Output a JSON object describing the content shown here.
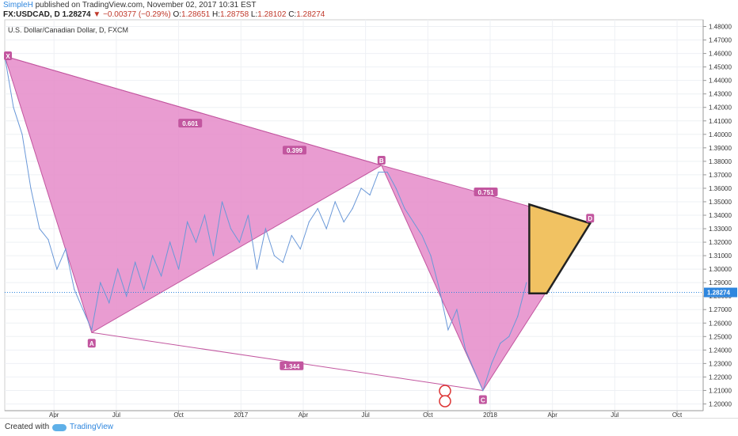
{
  "header": {
    "author": "SimpleH",
    "published": "published on TradingView.com, November 02, 2017 10:31 EST",
    "symbol": "FX:USDCAD, D",
    "last": "1.28274",
    "change": "−0.00377 (−0.29%)",
    "open_label": "O:",
    "open": "1.28651",
    "high_label": "H:",
    "high": "1.28758",
    "low_label": "L:",
    "low": "1.28102",
    "close_label": "C:",
    "close": "1.28274"
  },
  "pane_title": "U.S. Dollar/Canadian Dollar, D, FXCM",
  "footer": {
    "created_with": "Created with",
    "brand": "TradingView"
  },
  "colors": {
    "pattern_fill": "#e58bc9",
    "pattern_line": "#c2569f",
    "price_line": "#6a98d8",
    "target_fill": "#f1c262",
    "badge": "#c2569f",
    "last_price_badge": "#2e86de"
  },
  "chart_data": {
    "type": "line",
    "ylim": [
      1.195,
      1.485
    ],
    "y_ticks": [
      "1.48000",
      "1.47000",
      "1.46000",
      "1.45000",
      "1.44000",
      "1.43000",
      "1.42000",
      "1.41000",
      "1.40000",
      "1.39000",
      "1.38000",
      "1.37000",
      "1.36000",
      "1.35000",
      "1.34000",
      "1.33000",
      "1.32000",
      "1.31000",
      "1.30000",
      "1.29000",
      "1.28000",
      "1.27000",
      "1.26000",
      "1.25000",
      "1.24000",
      "1.23000",
      "1.22000",
      "1.21000",
      "1.20000"
    ],
    "x_ticks": [
      "Apr",
      "Jul",
      "Oct",
      "2017",
      "Apr",
      "Jul",
      "Oct",
      "2018",
      "Apr",
      "Jul",
      "Oct"
    ],
    "last_price_label": "1.28274",
    "last_price": 1.28274,
    "pattern_points": [
      {
        "label": "X",
        "x": 0.0,
        "y": 1.458
      },
      {
        "label": "A",
        "x": 3.0,
        "y": 1.253
      },
      {
        "label": "B",
        "x": 13.0,
        "y": 1.377
      },
      {
        "label": "C",
        "x": 16.5,
        "y": 1.21
      },
      {
        "label": "D",
        "x": 20.2,
        "y": 1.334
      }
    ],
    "ratios": [
      {
        "label": "0.601",
        "x": 6.4,
        "y": 1.408
      },
      {
        "label": "0.399",
        "x": 10.0,
        "y": 1.388
      },
      {
        "label": "1.344",
        "x": 9.9,
        "y": 1.228
      },
      {
        "label": "0.751",
        "x": 16.6,
        "y": 1.357
      }
    ],
    "target_zone": [
      {
        "x": 18.1,
        "y": 1.348
      },
      {
        "x": 20.2,
        "y": 1.334
      },
      {
        "x": 18.7,
        "y": 1.282
      },
      {
        "x": 18.1,
        "y": 1.282
      }
    ],
    "series": [
      {
        "x": [
          0.0,
          0.3,
          0.6,
          0.9,
          1.2,
          1.5,
          1.8,
          2.1,
          2.4,
          2.7,
          3.0,
          3.3,
          3.6,
          3.9,
          4.2,
          4.5,
          4.8,
          5.1,
          5.4,
          5.7,
          6.0,
          6.3,
          6.6,
          6.9,
          7.2,
          7.5,
          7.8,
          8.1,
          8.4,
          8.7,
          9.0,
          9.3,
          9.6,
          9.9,
          10.2,
          10.5,
          10.8,
          11.1,
          11.4,
          11.7,
          12.0,
          12.3,
          12.6,
          12.9,
          13.2,
          13.5,
          13.8,
          14.1,
          14.4,
          14.7,
          15.0,
          15.3,
          15.6,
          15.9,
          16.2,
          16.5,
          16.8,
          17.1,
          17.4,
          17.7,
          18.0
        ],
        "y": [
          1.458,
          1.42,
          1.4,
          1.36,
          1.33,
          1.322,
          1.3,
          1.315,
          1.285,
          1.27,
          1.255,
          1.29,
          1.275,
          1.3,
          1.28,
          1.305,
          1.285,
          1.31,
          1.295,
          1.32,
          1.3,
          1.335,
          1.32,
          1.34,
          1.31,
          1.35,
          1.33,
          1.32,
          1.34,
          1.3,
          1.33,
          1.31,
          1.305,
          1.325,
          1.315,
          1.335,
          1.345,
          1.33,
          1.35,
          1.335,
          1.345,
          1.36,
          1.355,
          1.372,
          1.372,
          1.36,
          1.345,
          1.335,
          1.325,
          1.31,
          1.285,
          1.255,
          1.27,
          1.24,
          1.225,
          1.21,
          1.23,
          1.245,
          1.25,
          1.265,
          1.29
        ]
      }
    ]
  }
}
